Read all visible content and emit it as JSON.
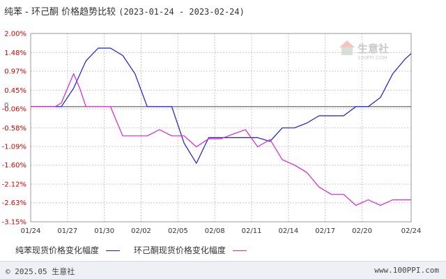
{
  "title": {
    "main": "纯苯 - 环己酮 价格趋势比较",
    "range": "(2023-01-24 - 2023-02-24)"
  },
  "watermark": {
    "text": "生意社",
    "sub": "100PPI.COM"
  },
  "footer": {
    "left": "© 2025.05 生意社",
    "right": "www.100PPI.com"
  },
  "colors": {
    "series1": "#1a1ad6",
    "series2": "#e020d0",
    "grid": "#c8c8c8",
    "axis": "#444444",
    "ytick": "#cc0000"
  },
  "chart_data": {
    "type": "line",
    "y_ticks": [
      "2.00%",
      "1.48%",
      "0.97%",
      "0.45%",
      "-0.06%",
      "-0.58%",
      "-1.09%",
      "-1.60%",
      "-2.12%",
      "-2.63%",
      "-3.15%"
    ],
    "y_tick_values": [
      2.0,
      1.48,
      0.97,
      0.45,
      -0.06,
      -0.58,
      -1.09,
      -1.6,
      -2.12,
      -2.63,
      -3.15
    ],
    "ylim": [
      -3.15,
      2.0
    ],
    "y_axis_zero_label": "0",
    "x_ticks": [
      "01/24",
      "01/27",
      "01/30",
      "02/02",
      "02/05",
      "02/08",
      "02/11",
      "02/14",
      "02/17",
      "02/20",
      "02/24"
    ],
    "x_tick_days": [
      0,
      3,
      6,
      9,
      12,
      15,
      18,
      21,
      24,
      27,
      31
    ],
    "x_range": [
      0,
      31
    ],
    "grid": true,
    "legend_position": "bottom-left",
    "series": [
      {
        "name": "纯苯现货价格变化幅度",
        "x": [
          0,
          1,
          2,
          2.5,
          3.5,
          4.5,
          5.5,
          6.5,
          7.5,
          8.5,
          9.5,
          11.5,
          12.5,
          13.5,
          14.5,
          15.5,
          16.5,
          17.5,
          18.5,
          19.5,
          20.5,
          21.5,
          22.5,
          23.5,
          24.5,
          25.5,
          26.5,
          27.5,
          28.5,
          29.5,
          30.5,
          31
        ],
        "y": [
          0,
          0,
          0,
          0,
          0.5,
          1.25,
          1.6,
          1.6,
          1.4,
          0.9,
          0,
          0,
          -1.0,
          -1.55,
          -0.85,
          -0.85,
          -0.85,
          -0.85,
          -0.85,
          -0.95,
          -0.58,
          -0.58,
          -0.45,
          -0.25,
          -0.25,
          -0.25,
          0,
          0,
          0.25,
          0.9,
          1.3,
          1.45
        ]
      },
      {
        "name": "环己酮现货价格变化幅度",
        "x": [
          0,
          1,
          2,
          2.5,
          3.5,
          4,
          4.5,
          5.5,
          6.5,
          7.5,
          8.5,
          9.5,
          10.5,
          11.5,
          12.5,
          13.5,
          14.5,
          15.5,
          16.5,
          17.5,
          18.5,
          19.5,
          20.5,
          21.5,
          22.5,
          23.5,
          24.5,
          25.5,
          26.5,
          27.5,
          28.5,
          29.5,
          30.5,
          31
        ],
        "y": [
          0,
          0,
          0,
          0.1,
          0.9,
          0.5,
          0,
          0,
          0,
          -0.8,
          -0.8,
          -0.8,
          -0.63,
          -0.8,
          -0.8,
          -1.1,
          -0.88,
          -0.88,
          -0.75,
          -0.63,
          -1.1,
          -0.9,
          -1.45,
          -1.6,
          -1.8,
          -2.2,
          -2.4,
          -2.4,
          -2.7,
          -2.55,
          -2.7,
          -2.55,
          -2.55,
          -2.55
        ]
      }
    ]
  }
}
